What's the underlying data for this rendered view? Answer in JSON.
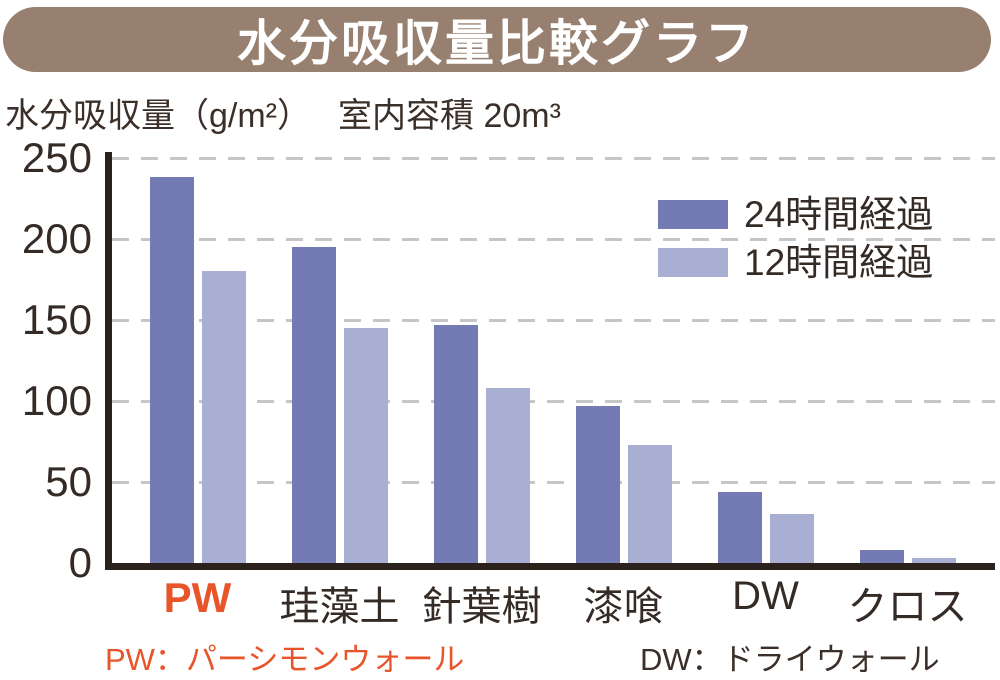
{
  "header": {
    "title": "水分吸収量比較グラフ"
  },
  "subtitle": {
    "unit_label": "水分吸収量（g/m²）",
    "room_volume_label": "室内容積 20m³"
  },
  "footer": {
    "pw_note": "PW：パーシモンウォール",
    "dw_note": "DW：ドライウォール"
  },
  "colors": {
    "header_band": "#97806f",
    "title_text": "#ffffff",
    "accent_orange": "#e8552a",
    "bar_24h": "#747bb4",
    "bar_12h": "#a9afd3",
    "axis": "#2b211d",
    "gridline": "#c6c6c6",
    "text": "#352b26"
  },
  "chart_data": {
    "type": "bar",
    "title": "水分吸収量比較グラフ",
    "ylabel": "水分吸収量（g/m²）",
    "annotation": "室内容積 20m³",
    "categories": [
      "PW",
      "珪藻土",
      "針葉樹",
      "漆喰",
      "DW",
      "クロス"
    ],
    "series": [
      {
        "name": "24時間経過",
        "color": "#747bb4",
        "values": [
          238,
          195,
          147,
          97,
          44,
          8
        ]
      },
      {
        "name": "12時間経過",
        "color": "#a9afd3",
        "values": [
          180,
          145,
          108,
          73,
          30,
          3
        ]
      }
    ],
    "ylim": [
      0,
      250
    ],
    "yticks": [
      0,
      50,
      100,
      150,
      200,
      250
    ],
    "grid": "horizontal-dashed",
    "legend_position": "top-right",
    "highlight_category": "PW",
    "highlight_color": "#e8552a"
  }
}
